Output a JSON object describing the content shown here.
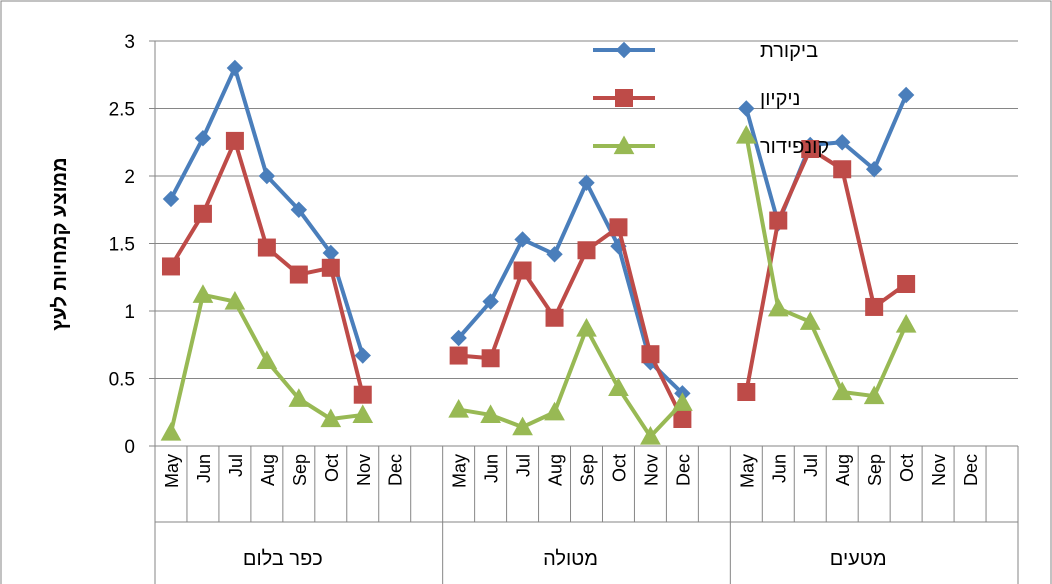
{
  "chart_data": {
    "type": "line",
    "ylabel": "ממוצע קמחיות לעץ",
    "xlabel": "",
    "title": "",
    "ylim": [
      0,
      3
    ],
    "yticks": [
      "0",
      "0.5",
      "1",
      "1.5",
      "2",
      "2.5",
      "3"
    ],
    "months": [
      "May",
      "Jun",
      "Jul",
      "Aug",
      "Sep",
      "Oct",
      "Nov",
      "Dec"
    ],
    "groups": [
      "כפר בלום",
      "מטולה",
      "מטעים"
    ],
    "grid": true,
    "legend_position": "top-right",
    "series": [
      {
        "name": "ביקורת",
        "color": "#4a7ebb",
        "marker": "diamond",
        "values": [
          [
            1.83,
            2.28,
            2.8,
            2.0,
            1.75,
            1.43,
            0.67,
            null
          ],
          [
            0.8,
            1.07,
            1.53,
            1.42,
            1.95,
            1.48,
            0.62,
            0.39
          ],
          [
            2.5,
            1.65,
            2.23,
            2.25,
            2.05,
            2.6,
            null,
            null
          ]
        ]
      },
      {
        "name": "ניקיון",
        "color": "#be4b48",
        "marker": "square",
        "values": [
          [
            1.33,
            1.72,
            2.26,
            1.47,
            1.27,
            1.32,
            0.38,
            null
          ],
          [
            0.67,
            0.65,
            1.3,
            0.95,
            1.45,
            1.62,
            0.68,
            0.2
          ],
          [
            0.4,
            1.67,
            2.2,
            2.05,
            1.03,
            1.2,
            null,
            null
          ]
        ]
      },
      {
        "name": "קונפידור",
        "color": "#98b954",
        "marker": "triangle",
        "values": [
          [
            0.1,
            1.12,
            1.07,
            0.63,
            0.35,
            0.2,
            0.23,
            null
          ],
          [
            0.27,
            0.23,
            0.14,
            0.25,
            0.87,
            0.43,
            0.07,
            0.32
          ],
          [
            2.3,
            1.02,
            0.92,
            0.4,
            0.37,
            0.9,
            null,
            null
          ]
        ]
      }
    ]
  }
}
